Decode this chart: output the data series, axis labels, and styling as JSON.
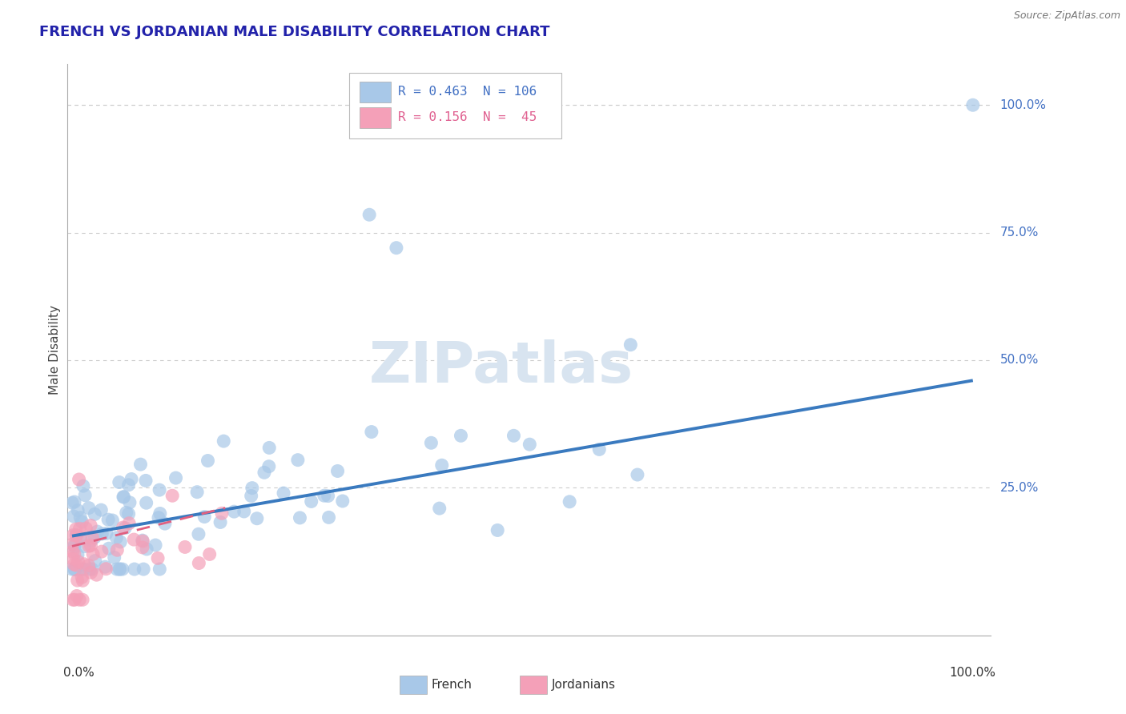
{
  "title": "FRENCH VS JORDANIAN MALE DISABILITY CORRELATION CHART",
  "source": "Source: ZipAtlas.com",
  "ylabel": "Male Disability",
  "legend_french_R": "0.463",
  "legend_french_N": "106",
  "legend_jordanian_R": "0.156",
  "legend_jordanian_N": "45",
  "french_color": "#a8c8e8",
  "jordanian_color": "#f4a0b8",
  "french_line_color": "#3a7abf",
  "jordanian_line_color": "#e06080",
  "background_color": "#ffffff",
  "grid_color": "#cccccc",
  "right_label_color": "#4472c4",
  "title_color": "#2222aa",
  "watermark": "ZIPatlas",
  "watermark_color": "#d8e4f0",
  "french_line_x0": 0.0,
  "french_line_y0": 0.155,
  "french_line_x1": 1.0,
  "french_line_y1": 0.46,
  "jordan_line_x0": 0.0,
  "jordan_line_y0": 0.135,
  "jordan_line_x1": 0.17,
  "jordan_line_y1": 0.21,
  "xlim": [
    -0.005,
    1.02
  ],
  "ylim": [
    -0.04,
    1.08
  ]
}
